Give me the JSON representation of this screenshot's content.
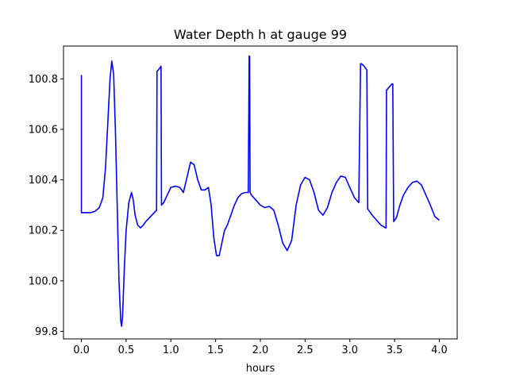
{
  "chart_data": {
    "type": "line",
    "title": "Water Depth h at gauge 99",
    "xlabel": "hours",
    "ylabel": "",
    "xlim": [
      -0.2,
      4.2
    ],
    "ylim": [
      99.77,
      100.93
    ],
    "xticks": [
      0.0,
      0.5,
      1.0,
      1.5,
      2.0,
      2.5,
      3.0,
      3.5,
      4.0
    ],
    "xtick_labels": [
      "0.0",
      "0.5",
      "1.0",
      "1.5",
      "2.0",
      "2.5",
      "3.0",
      "3.5",
      "4.0"
    ],
    "yticks": [
      99.8,
      100.0,
      100.2,
      100.4,
      100.6,
      100.8
    ],
    "ytick_labels": [
      "99.8",
      "100.0",
      "100.2",
      "100.4",
      "100.6",
      "100.8"
    ],
    "grid": false,
    "series": [
      {
        "color": "#0000ff",
        "x": [
          0.0,
          0.0,
          0.05,
          0.1,
          0.15,
          0.2,
          0.24,
          0.27,
          0.3,
          0.32,
          0.34,
          0.36,
          0.38,
          0.4,
          0.42,
          0.44,
          0.45,
          0.46,
          0.48,
          0.5,
          0.53,
          0.56,
          0.58,
          0.6,
          0.63,
          0.66,
          0.69,
          0.72,
          0.76,
          0.8,
          0.84,
          0.845,
          0.86,
          0.89,
          0.895,
          0.92,
          0.96,
          1.0,
          1.05,
          1.1,
          1.14,
          1.18,
          1.22,
          1.26,
          1.3,
          1.34,
          1.38,
          1.42,
          1.45,
          1.48,
          1.51,
          1.54,
          1.57,
          1.6,
          1.63,
          1.67,
          1.71,
          1.75,
          1.79,
          1.83,
          1.865,
          1.875,
          1.88,
          1.885,
          1.9,
          1.95,
          2.0,
          2.05,
          2.1,
          2.15,
          2.2,
          2.25,
          2.3,
          2.35,
          2.4,
          2.45,
          2.5,
          2.55,
          2.6,
          2.65,
          2.7,
          2.75,
          2.8,
          2.85,
          2.9,
          2.95,
          3.0,
          3.05,
          3.1,
          3.12,
          3.13,
          3.16,
          3.19,
          3.2,
          3.25,
          3.3,
          3.35,
          3.4,
          3.405,
          3.41,
          3.47,
          3.48,
          3.49,
          3.52,
          3.56,
          3.6,
          3.65,
          3.7,
          3.75,
          3.8,
          3.85,
          3.9,
          3.95,
          4.0
        ],
        "y": [
          100.815,
          100.27,
          100.27,
          100.27,
          100.275,
          100.29,
          100.33,
          100.45,
          100.66,
          100.8,
          100.87,
          100.82,
          100.6,
          100.3,
          100.0,
          99.84,
          99.82,
          99.86,
          100.05,
          100.2,
          100.31,
          100.35,
          100.32,
          100.26,
          100.22,
          100.21,
          100.22,
          100.235,
          100.25,
          100.265,
          100.28,
          100.83,
          100.835,
          100.85,
          100.3,
          100.31,
          100.34,
          100.37,
          100.375,
          100.37,
          100.35,
          100.41,
          100.47,
          100.46,
          100.4,
          100.36,
          100.36,
          100.37,
          100.3,
          100.17,
          100.1,
          100.1,
          100.15,
          100.2,
          100.22,
          100.26,
          100.3,
          100.33,
          100.345,
          100.35,
          100.35,
          100.89,
          100.89,
          100.35,
          100.34,
          100.32,
          100.3,
          100.29,
          100.295,
          100.28,
          100.22,
          100.15,
          100.12,
          100.16,
          100.3,
          100.38,
          100.41,
          100.4,
          100.35,
          100.28,
          100.26,
          100.29,
          100.35,
          100.39,
          100.415,
          100.41,
          100.37,
          100.33,
          100.31,
          100.86,
          100.86,
          100.85,
          100.835,
          100.285,
          100.26,
          100.24,
          100.22,
          100.21,
          100.21,
          100.755,
          100.78,
          100.78,
          100.235,
          100.25,
          100.3,
          100.34,
          100.37,
          100.39,
          100.395,
          100.38,
          100.34,
          100.3,
          100.255,
          100.24
        ]
      }
    ]
  }
}
